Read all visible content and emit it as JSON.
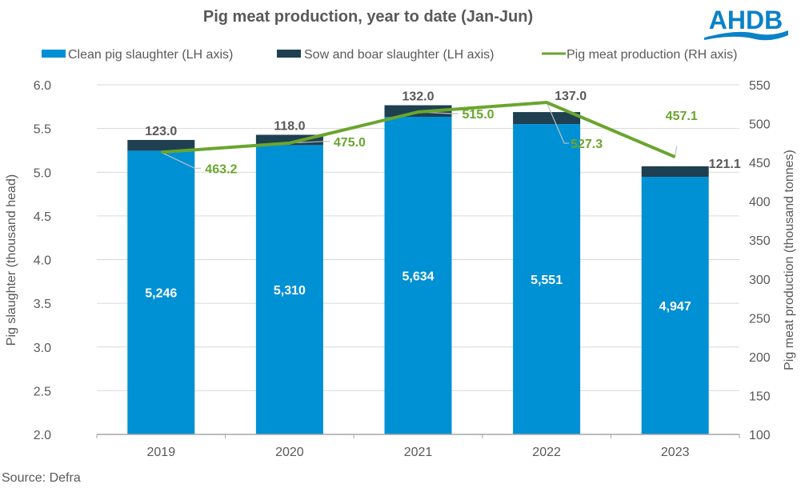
{
  "logo": {
    "text": "AHDB",
    "color": "#0a82c8"
  },
  "source": "Source: Defra",
  "colors": {
    "clean": "#0090d4",
    "sow": "#1e4050",
    "line": "#6aa52e",
    "grid": "#d9d9d9",
    "axis": "#a6a6a6",
    "text": "#595959",
    "leader": "#bfbfbf"
  },
  "chart_data": {
    "type": "bar",
    "title": "Pig meat production, year to date (Jan-Jun)",
    "categories": [
      "2019",
      "2020",
      "2021",
      "2022",
      "2023"
    ],
    "xlabel": "",
    "ylabel": "Pig slaughter (thousand head)",
    "y2label": "Pig meat production (thousand tonnes)",
    "ylim": [
      2.0,
      6.0
    ],
    "y2lim": [
      100,
      550
    ],
    "yticks": [
      "2.0",
      "2.5",
      "3.0",
      "3.5",
      "4.0",
      "4.5",
      "5.0",
      "5.5",
      "6.0"
    ],
    "y2ticks": [
      "100",
      "150",
      "200",
      "250",
      "300",
      "350",
      "400",
      "450",
      "500",
      "550"
    ],
    "grid": true,
    "legend_position": "top",
    "series": [
      {
        "name": "Clean pig slaughter (LH axis)",
        "type": "bar",
        "stack": "slaughter",
        "axis": "left",
        "values": [
          5.246,
          5.31,
          5.634,
          5.551,
          4.947
        ],
        "labels": [
          "5,246",
          "5,310",
          "5,634",
          "5,551",
          "4,947"
        ]
      },
      {
        "name": "Sow and boar slaughter (LH axis)",
        "type": "bar",
        "stack": "slaughter",
        "axis": "left",
        "values": [
          0.123,
          0.118,
          0.132,
          0.137,
          0.1211
        ],
        "labels": [
          "123.0",
          "118.0",
          "132.0",
          "137.0",
          "121.1"
        ]
      },
      {
        "name": "Pig meat production (RH axis)",
        "type": "line",
        "axis": "right",
        "values": [
          463.2,
          475.0,
          515.0,
          527.3,
          457.1
        ],
        "labels": [
          "463.2",
          "475.0",
          "515.0",
          "527.3",
          "457.1"
        ]
      }
    ]
  }
}
